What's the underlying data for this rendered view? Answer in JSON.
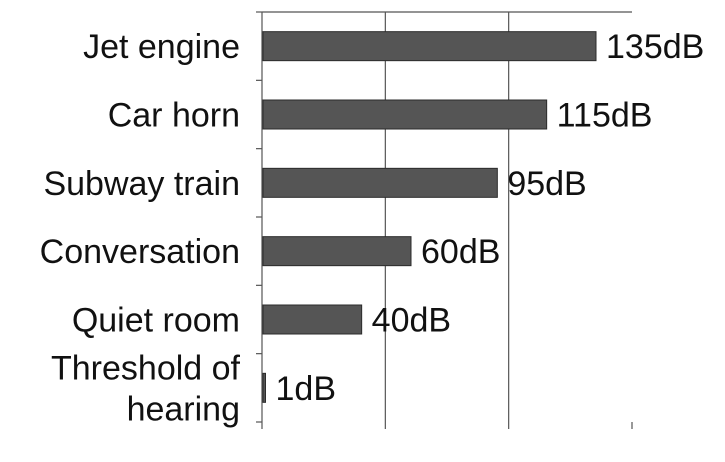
{
  "chart_data": {
    "type": "bar",
    "orientation": "horizontal",
    "categories": [
      "Jet engine",
      "Car horn",
      "Subway train",
      "Conversation",
      "Quiet room",
      "Threshold of hearing"
    ],
    "category_lines": [
      [
        "Jet engine"
      ],
      [
        "Car horn"
      ],
      [
        "Subway train"
      ],
      [
        "Conversation"
      ],
      [
        "Quiet room"
      ],
      [
        "Threshold of",
        "hearing"
      ]
    ],
    "values": [
      135,
      115,
      95,
      60,
      40,
      1
    ],
    "value_labels": [
      "135dB",
      "115dB",
      "95dB",
      "60dB",
      "40dB",
      "1dB"
    ],
    "xlim": [
      0,
      150
    ],
    "x_gridlines": [
      50,
      100
    ],
    "grid": true,
    "legend": "none",
    "bar_color": "#555555",
    "bar_outline": "#2b2b2b"
  }
}
